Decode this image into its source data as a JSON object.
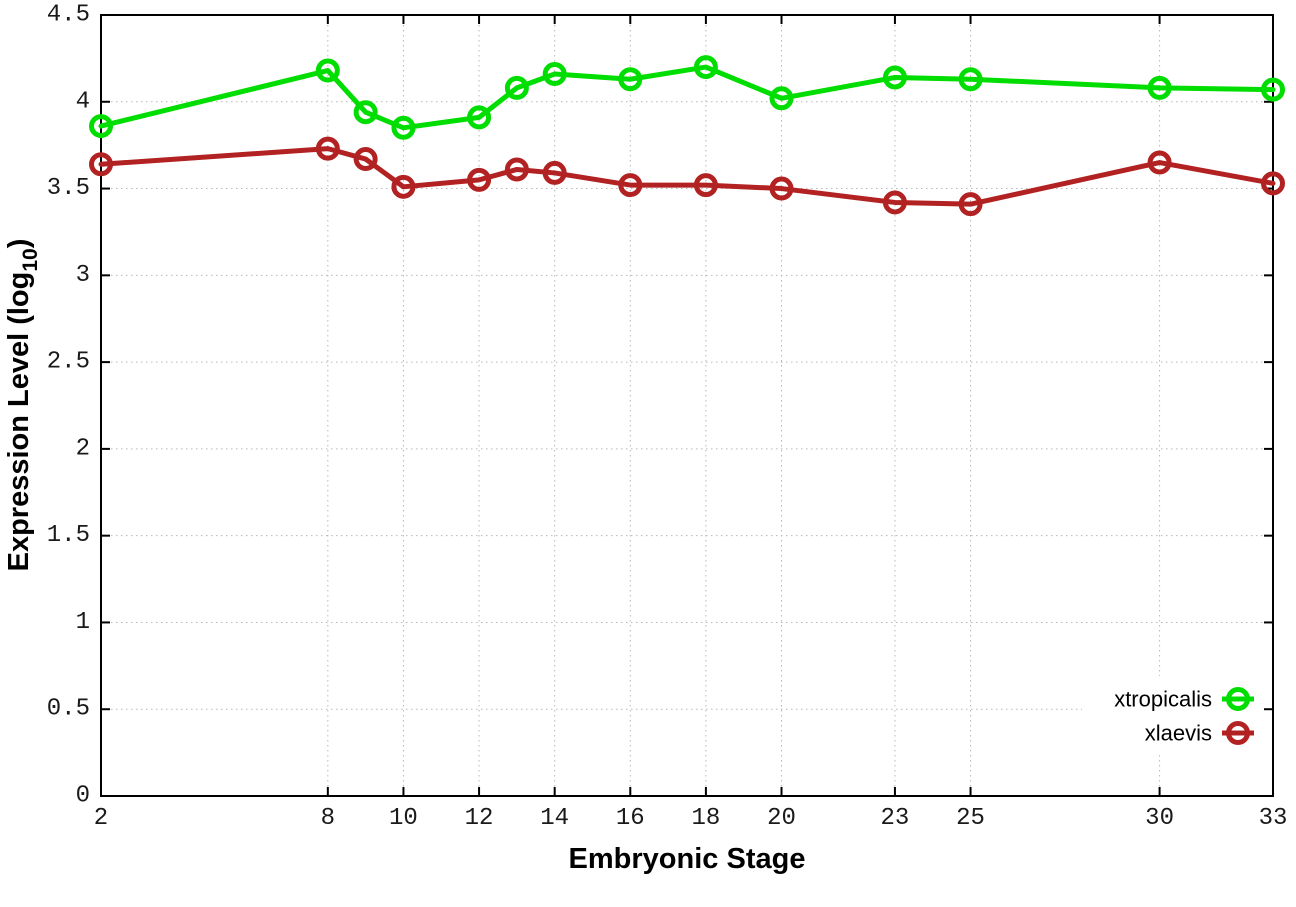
{
  "chart_data": {
    "type": "line",
    "title": "",
    "xlabel": "Embryonic Stage",
    "ylabel": "Expression Level (log10)",
    "x": [
      2,
      8,
      9,
      10,
      12,
      13,
      14,
      16,
      18,
      20,
      23,
      25,
      30,
      33
    ],
    "series": [
      {
        "name": "xtropicalis",
        "color": "#00dd00",
        "values": [
          3.86,
          4.18,
          3.94,
          3.85,
          3.91,
          4.08,
          4.16,
          4.13,
          4.2,
          4.02,
          4.14,
          4.13,
          4.08,
          4.07
        ]
      },
      {
        "name": "xlaevis",
        "color": "#b22222",
        "values": [
          3.64,
          3.73,
          3.67,
          3.51,
          3.55,
          3.61,
          3.59,
          3.52,
          3.52,
          3.5,
          3.42,
          3.41,
          3.65,
          3.53
        ]
      }
    ],
    "xlim": [
      2,
      33
    ],
    "ylim": [
      0,
      4.5
    ],
    "x_ticks": [
      2,
      8,
      10,
      12,
      14,
      16,
      18,
      20,
      23,
      25,
      30,
      33
    ],
    "y_ticks": [
      0,
      0.5,
      1,
      1.5,
      2,
      2.5,
      3,
      3.5,
      4,
      4.5
    ],
    "grid": true,
    "grid_style": "dotted",
    "legend_position": "inside-bottom-right",
    "marker": "open-circle"
  },
  "labels": {
    "xlabel": "Embryonic Stage",
    "ylabel_main": "Expression Level (log",
    "ylabel_sub": "10",
    "ylabel_end": ")",
    "legend": [
      "xtropicalis",
      "xlaevis"
    ]
  },
  "style": {
    "background": "#ffffff",
    "border_color": "#000000",
    "grid_color": "#b8b8b8",
    "tick_label_color": "#1a1a1a",
    "series_colors": [
      "#00dd00",
      "#b22222"
    ]
  }
}
